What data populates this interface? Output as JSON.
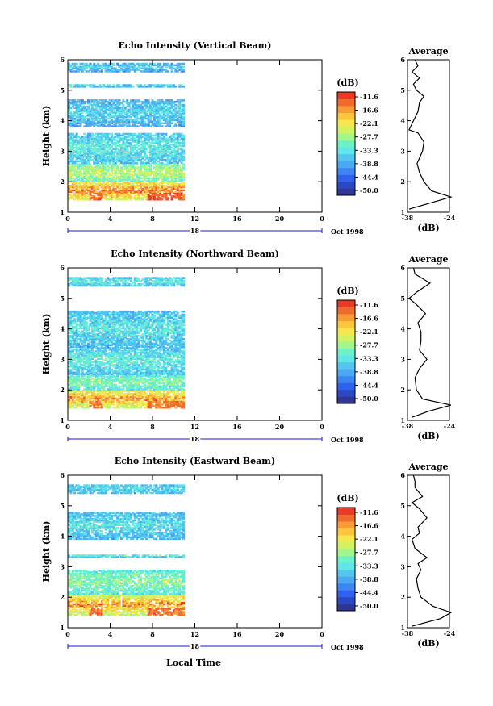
{
  "colors": {
    "scale": [
      "#313695",
      "#2a47c4",
      "#3060ee",
      "#3c86f3",
      "#4aa9f2",
      "#52c6ee",
      "#5ee6e8",
      "#6cf2c6",
      "#a2f68a",
      "#d2f260",
      "#f6e84c",
      "#fbc63c",
      "#f99b32",
      "#f06a2c",
      "#e83a26"
    ],
    "line": "#000000",
    "date_line": "#1a1acc"
  },
  "panels": [
    {
      "title": "Echo Intensity (Vertical Beam)",
      "ylabel": "Height (km)",
      "avg_title": "Average",
      "avg_xlabel": "(dB)",
      "cb_unit": "(dB)",
      "date_day": "18",
      "date_label": "Oct 1998",
      "yticks": [
        "1",
        "2",
        "3",
        "4",
        "5",
        "6"
      ],
      "xticks": [
        "0",
        "4",
        "8",
        "12",
        "16",
        "20",
        "0"
      ],
      "cb_ticks": [
        "-11.6",
        "-16.6",
        "-22.1",
        "-27.7",
        "-33.3",
        "-38.8",
        "-44.4",
        "-50.0"
      ],
      "avg_xticks": [
        "-38",
        "-24"
      ]
    },
    {
      "title": "Echo Intensity (Northward Beam)",
      "ylabel": "Height (km)",
      "avg_title": "Average",
      "avg_xlabel": "(dB)",
      "cb_unit": "(dB)",
      "date_day": "18",
      "date_label": "Oct 1998",
      "yticks": [
        "1",
        "2",
        "3",
        "4",
        "5",
        "6"
      ],
      "xticks": [
        "0",
        "4",
        "8",
        "12",
        "16",
        "20",
        "0"
      ],
      "cb_ticks": [
        "-11.6",
        "-16.6",
        "-22.1",
        "-27.7",
        "-33.3",
        "-38.8",
        "-44.4",
        "-50.0"
      ],
      "avg_xticks": [
        "-38",
        "-24"
      ]
    },
    {
      "title": "Echo Intensity (Eastward Beam)",
      "ylabel": "Height (km)",
      "avg_title": "Average",
      "avg_xlabel": "(dB)",
      "cb_unit": "(dB)",
      "date_day": "18",
      "date_label": "Oct 1998",
      "yticks": [
        "1",
        "2",
        "3",
        "4",
        "5",
        "6"
      ],
      "xticks": [
        "0",
        "4",
        "8",
        "12",
        "16",
        "20",
        "0"
      ],
      "cb_ticks": [
        "-11.6",
        "-16.6",
        "-22.1",
        "-27.7",
        "-33.3",
        "-38.8",
        "-44.4",
        "-50.0"
      ],
      "avg_xticks": [
        "-38",
        "-24"
      ]
    }
  ],
  "xlabel": "Local Time",
  "chart_data": [
    {
      "type": "heatmap",
      "title": "Echo Intensity (Vertical Beam)",
      "xlabel": "Local Time",
      "ylabel": "Height (km)",
      "xlim": [
        0,
        24
      ],
      "ylim": [
        1,
        6
      ],
      "data_until_hour": 11,
      "colorbar": {
        "unit": "dB",
        "range": [
          -50.0,
          -11.6
        ]
      },
      "bands": [
        {
          "h": [
            1.4,
            2.0
          ],
          "level": -25,
          "peak": -13
        },
        {
          "h": [
            2.0,
            2.6
          ],
          "level": -31,
          "peak": -24
        },
        {
          "h": [
            2.6,
            3.6
          ],
          "level": -36,
          "peak": -31
        },
        {
          "h": [
            3.8,
            4.7
          ],
          "level": -38,
          "peak": -33
        },
        {
          "h": [
            5.1,
            5.2
          ],
          "level": -37,
          "peak": -33
        },
        {
          "h": [
            5.6,
            5.9
          ],
          "level": -38,
          "peak": -34
        }
      ],
      "average": {
        "x": [
          -38,
          -24
        ],
        "h": [
          1.1,
          1.4,
          1.5,
          1.7,
          2.0,
          2.3,
          2.6,
          3.0,
          3.3,
          3.6,
          3.7,
          4.0,
          4.3,
          4.6,
          4.8,
          5.0,
          5.2,
          5.4,
          5.6,
          5.8,
          6.0
        ],
        "db": [
          -37.5,
          -27.0,
          -23.5,
          -30.0,
          -32.5,
          -34.0,
          -34.8,
          -33.0,
          -32.5,
          -34.5,
          -37.5,
          -36.0,
          -34.5,
          -34.0,
          -32.5,
          -35.0,
          -36.0,
          -34.0,
          -36.5,
          -34.5,
          -35.5
        ]
      }
    },
    {
      "type": "heatmap",
      "title": "Echo Intensity (Northward Beam)",
      "xlabel": "Local Time",
      "ylabel": "Height (km)",
      "xlim": [
        0,
        24
      ],
      "ylim": [
        1,
        6
      ],
      "data_until_hour": 11,
      "colorbar": {
        "unit": "dB",
        "range": [
          -50.0,
          -11.6
        ]
      },
      "bands": [
        {
          "h": [
            1.4,
            2.0
          ],
          "level": -27,
          "peak": -14
        },
        {
          "h": [
            2.0,
            2.5
          ],
          "level": -33,
          "peak": -28
        },
        {
          "h": [
            2.5,
            3.4
          ],
          "level": -36,
          "peak": -30
        },
        {
          "h": [
            3.4,
            4.6
          ],
          "level": -37,
          "peak": -31
        },
        {
          "h": [
            5.4,
            5.7
          ],
          "level": -36,
          "peak": -31
        }
      ],
      "average": {
        "x": [
          -38,
          -24
        ],
        "h": [
          1.1,
          1.3,
          1.5,
          1.7,
          2.0,
          2.4,
          2.7,
          3.0,
          3.3,
          3.6,
          3.9,
          4.2,
          4.5,
          4.8,
          5.0,
          5.2,
          5.5,
          5.8,
          6.0
        ],
        "db": [
          -36.5,
          -31.0,
          -23.5,
          -33.0,
          -35.0,
          -35.5,
          -34.0,
          -31.5,
          -34.0,
          -33.5,
          -33.5,
          -34.5,
          -32.0,
          -35.0,
          -37.5,
          -35.0,
          -30.5,
          -35.5,
          -36.0
        ]
      }
    },
    {
      "type": "heatmap",
      "title": "Echo Intensity (Eastward Beam)",
      "xlabel": "Local Time",
      "ylabel": "Height (km)",
      "xlim": [
        0,
        24
      ],
      "ylim": [
        1,
        6
      ],
      "data_until_hour": 11,
      "colorbar": {
        "unit": "dB",
        "range": [
          -50.0,
          -11.6
        ]
      },
      "bands": [
        {
          "h": [
            1.4,
            2.1
          ],
          "level": -27,
          "peak": -14
        },
        {
          "h": [
            2.1,
            2.9
          ],
          "level": -33,
          "peak": -27
        },
        {
          "h": [
            3.3,
            3.4
          ],
          "level": -36,
          "peak": -31
        },
        {
          "h": [
            3.9,
            4.8
          ],
          "level": -37,
          "peak": -32
        },
        {
          "h": [
            5.4,
            5.7
          ],
          "level": -37,
          "peak": -33
        }
      ],
      "average": {
        "x": [
          -38,
          -24
        ],
        "h": [
          1.05,
          1.3,
          1.5,
          1.7,
          2.0,
          2.3,
          2.6,
          2.9,
          3.1,
          3.3,
          3.6,
          3.9,
          4.1,
          4.3,
          4.6,
          4.9,
          5.1,
          5.3,
          5.6,
          5.8,
          6.0
        ],
        "db": [
          -36.5,
          -27.0,
          -23.5,
          -29.5,
          -33.5,
          -34.5,
          -35.0,
          -33.5,
          -34.5,
          -31.5,
          -35.5,
          -36.5,
          -34.0,
          -34.5,
          -31.5,
          -34.0,
          -36.5,
          -33.0,
          -35.5,
          -35.5,
          -36.0
        ]
      }
    }
  ]
}
